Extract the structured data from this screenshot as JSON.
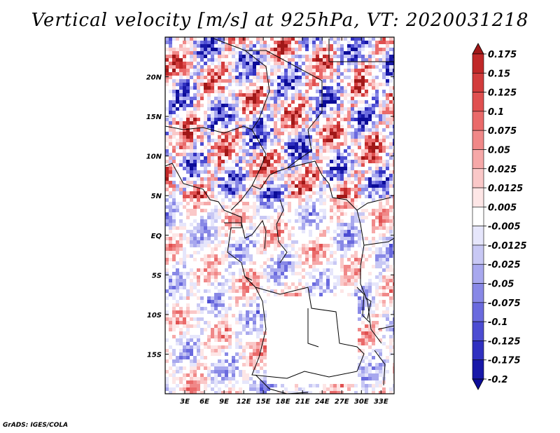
{
  "title": "Vertical velocity [m/s] at 925hPa, VT: 2020031218",
  "footer": "GrADS: IGES/COLA",
  "map": {
    "lon_range": [
      0,
      35
    ],
    "lat_range": [
      -20,
      25
    ],
    "x_ticks": [
      "3E",
      "6E",
      "9E",
      "12E",
      "15E",
      "18E",
      "21E",
      "24E",
      "27E",
      "30E",
      "33E"
    ],
    "y_ticks": [
      "20N",
      "15N",
      "10N",
      "5N",
      "EQ",
      "5S",
      "10S",
      "15S"
    ],
    "x_tick_values": [
      3,
      6,
      9,
      12,
      15,
      18,
      21,
      24,
      27,
      30,
      33
    ],
    "y_tick_values": [
      20,
      15,
      10,
      5,
      0,
      -5,
      -10,
      -15
    ]
  },
  "colorbar": {
    "labels": [
      "0.175",
      "0.15",
      "0.125",
      "0.1",
      "0.075",
      "0.05",
      "0.025",
      "0.0125",
      "0.005",
      "-0.005",
      "-0.0125",
      "-0.025",
      "-0.05",
      "-0.075",
      "-0.1",
      "-0.125",
      "-0.175",
      "-0.2"
    ],
    "colors": [
      "#a01818",
      "#c02828",
      "#d23c3c",
      "#e05050",
      "#ea6a6a",
      "#f08888",
      "#f6a8a8",
      "#fac8c8",
      "#fde6e6",
      "#ffffff",
      "#e6e6fb",
      "#c8c8f4",
      "#a8a8ee",
      "#8888e6",
      "#6a6ade",
      "#4c4cd2",
      "#3030c0",
      "#1818a8",
      "#0c0c98"
    ]
  }
}
